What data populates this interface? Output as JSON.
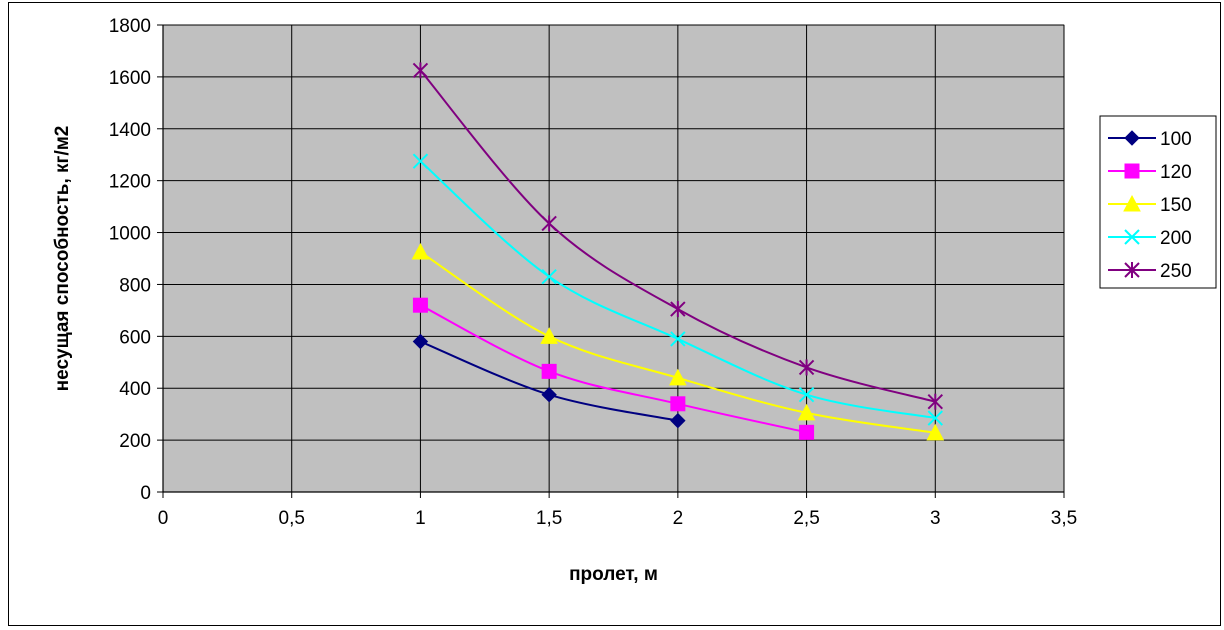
{
  "chart_data": {
    "type": "line",
    "title": "",
    "xlabel": "пролет, м",
    "ylabel": "несущая способность, кг/м2",
    "xlim": [
      0,
      3.5
    ],
    "ylim": [
      0,
      1800
    ],
    "x_ticks": [
      "0",
      "0,5",
      "1",
      "1,5",
      "2",
      "2,5",
      "3",
      "3,5"
    ],
    "y_ticks": [
      "0",
      "200",
      "400",
      "600",
      "800",
      "1000",
      "1200",
      "1400",
      "1600",
      "1800"
    ],
    "x_tick_values": [
      0,
      0.5,
      1,
      1.5,
      2,
      2.5,
      3,
      3.5
    ],
    "y_tick_values": [
      0,
      200,
      400,
      600,
      800,
      1000,
      1200,
      1400,
      1600,
      1800
    ],
    "grid": true,
    "plot_background": "#c0c0c0",
    "legend_position": "right",
    "series": [
      {
        "name": "100",
        "color": "#000080",
        "marker": "diamond",
        "x": [
          1,
          1.5,
          2
        ],
        "y": [
          580,
          375,
          275
        ]
      },
      {
        "name": "120",
        "color": "#ff00ff",
        "marker": "square",
        "x": [
          1,
          1.5,
          2,
          2.5
        ],
        "y": [
          720,
          465,
          340,
          230
        ]
      },
      {
        "name": "150",
        "color": "#ffff00",
        "marker": "triangle",
        "x": [
          1,
          1.5,
          2,
          2.5,
          3
        ],
        "y": [
          925,
          600,
          440,
          305,
          228
        ]
      },
      {
        "name": "200",
        "color": "#00ffff",
        "marker": "x",
        "x": [
          1,
          1.5,
          2,
          2.5,
          3
        ],
        "y": [
          1275,
          830,
          590,
          375,
          285
        ]
      },
      {
        "name": "250",
        "color": "#800080",
        "marker": "asterisk",
        "x": [
          1,
          1.5,
          2,
          2.5,
          3
        ],
        "y": [
          1625,
          1035,
          705,
          480,
          348
        ]
      }
    ]
  }
}
